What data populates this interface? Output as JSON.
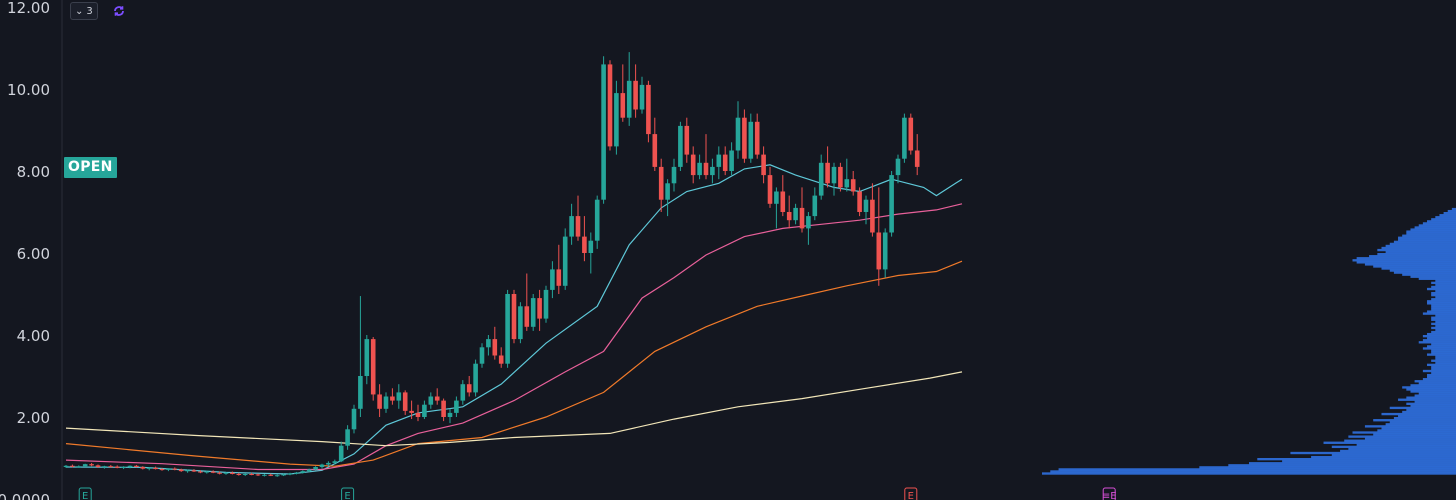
{
  "toolbar": {
    "collapse_count": "3",
    "collapse_icon": "chevron-down-icon",
    "sync_icon": "sync-icon"
  },
  "badge": {
    "label": "OPEN",
    "color": "#26a69a"
  },
  "colors": {
    "background": "#141720",
    "up": "#26a69a",
    "down": "#ef5350",
    "ma_fast": "#5ec8d8",
    "ma_mid": "#e8609a",
    "ma_slow": "#f07a2a",
    "ma_long": "#f2e6b8",
    "volume_profile": "#2f6fdc",
    "earnings_green": "#26a69a",
    "earnings_red": "#ef5350",
    "earnings_magenta": "#d64fd6"
  },
  "chart_data": {
    "type": "candlestick",
    "y_axis": {
      "ticks": [
        "0.0000",
        "2.00",
        "4.00",
        "6.00",
        "8.00",
        "10.00",
        "12.00"
      ],
      "min": 0,
      "max": 12,
      "position": "left"
    },
    "grid": false,
    "candles": [
      [
        0.78,
        0.83,
        0.76,
        0.81
      ],
      [
        0.81,
        0.84,
        0.77,
        0.79
      ],
      [
        0.79,
        0.82,
        0.76,
        0.8
      ],
      [
        0.8,
        0.86,
        0.78,
        0.85
      ],
      [
        0.85,
        0.88,
        0.8,
        0.82
      ],
      [
        0.82,
        0.84,
        0.76,
        0.78
      ],
      [
        0.78,
        0.81,
        0.74,
        0.8
      ],
      [
        0.8,
        0.83,
        0.77,
        0.79
      ],
      [
        0.79,
        0.82,
        0.75,
        0.76
      ],
      [
        0.76,
        0.8,
        0.73,
        0.78
      ],
      [
        0.78,
        0.82,
        0.75,
        0.81
      ],
      [
        0.81,
        0.83,
        0.77,
        0.78
      ],
      [
        0.78,
        0.8,
        0.72,
        0.74
      ],
      [
        0.74,
        0.78,
        0.7,
        0.76
      ],
      [
        0.76,
        0.79,
        0.72,
        0.73
      ],
      [
        0.73,
        0.76,
        0.69,
        0.71
      ],
      [
        0.71,
        0.75,
        0.68,
        0.74
      ],
      [
        0.74,
        0.77,
        0.7,
        0.72
      ],
      [
        0.72,
        0.74,
        0.66,
        0.68
      ],
      [
        0.68,
        0.72,
        0.64,
        0.7
      ],
      [
        0.7,
        0.73,
        0.66,
        0.67
      ],
      [
        0.67,
        0.7,
        0.63,
        0.65
      ],
      [
        0.65,
        0.69,
        0.62,
        0.67
      ],
      [
        0.67,
        0.7,
        0.63,
        0.64
      ],
      [
        0.64,
        0.67,
        0.6,
        0.62
      ],
      [
        0.62,
        0.66,
        0.59,
        0.64
      ],
      [
        0.64,
        0.67,
        0.6,
        0.61
      ],
      [
        0.61,
        0.64,
        0.57,
        0.59
      ],
      [
        0.59,
        0.63,
        0.56,
        0.61
      ],
      [
        0.61,
        0.64,
        0.58,
        0.6
      ],
      [
        0.6,
        0.62,
        0.56,
        0.58
      ],
      [
        0.58,
        0.61,
        0.55,
        0.59
      ],
      [
        0.59,
        0.62,
        0.56,
        0.57
      ],
      [
        0.57,
        0.6,
        0.54,
        0.58
      ],
      [
        0.58,
        0.62,
        0.56,
        0.6
      ],
      [
        0.6,
        0.64,
        0.58,
        0.62
      ],
      [
        0.62,
        0.66,
        0.6,
        0.64
      ],
      [
        0.64,
        0.7,
        0.62,
        0.68
      ],
      [
        0.68,
        0.74,
        0.65,
        0.72
      ],
      [
        0.72,
        0.8,
        0.7,
        0.78
      ],
      [
        0.78,
        0.86,
        0.74,
        0.84
      ],
      [
        0.84,
        0.92,
        0.8,
        0.88
      ],
      [
        0.88,
        0.96,
        0.84,
        0.92
      ],
      [
        0.92,
        1.4,
        0.9,
        1.3
      ],
      [
        1.3,
        1.8,
        1.2,
        1.7
      ],
      [
        1.7,
        2.3,
        1.6,
        2.2
      ],
      [
        2.2,
        4.95,
        2.0,
        3.0
      ],
      [
        3.0,
        4.0,
        2.8,
        3.9
      ],
      [
        3.9,
        3.95,
        2.4,
        2.55
      ],
      [
        2.55,
        2.8,
        2.0,
        2.2
      ],
      [
        2.2,
        2.6,
        2.1,
        2.5
      ],
      [
        2.5,
        2.7,
        2.3,
        2.4
      ],
      [
        2.4,
        2.8,
        2.2,
        2.6
      ],
      [
        2.6,
        2.65,
        2.05,
        2.15
      ],
      [
        2.15,
        2.4,
        1.95,
        2.1
      ],
      [
        2.1,
        2.3,
        1.9,
        2.0
      ],
      [
        2.0,
        2.4,
        1.95,
        2.3
      ],
      [
        2.3,
        2.6,
        2.2,
        2.5
      ],
      [
        2.5,
        2.7,
        2.3,
        2.4
      ],
      [
        2.4,
        2.45,
        1.9,
        2.0
      ],
      [
        2.0,
        2.2,
        1.85,
        2.1
      ],
      [
        2.1,
        2.5,
        2.0,
        2.4
      ],
      [
        2.4,
        2.9,
        2.3,
        2.8
      ],
      [
        2.8,
        3.0,
        2.5,
        2.6
      ],
      [
        2.6,
        3.4,
        2.5,
        3.3
      ],
      [
        3.3,
        3.8,
        3.2,
        3.7
      ],
      [
        3.7,
        4.0,
        3.5,
        3.9
      ],
      [
        3.9,
        4.2,
        3.4,
        3.5
      ],
      [
        3.5,
        3.7,
        3.2,
        3.3
      ],
      [
        3.3,
        5.1,
        3.2,
        5.0
      ],
      [
        5.0,
        5.1,
        3.8,
        3.9
      ],
      [
        3.9,
        4.8,
        3.8,
        4.7
      ],
      [
        4.7,
        5.5,
        4.1,
        4.2
      ],
      [
        4.2,
        5.0,
        4.1,
        4.9
      ],
      [
        4.9,
        5.1,
        4.1,
        4.4
      ],
      [
        4.4,
        5.2,
        4.3,
        5.1
      ],
      [
        5.1,
        5.8,
        4.9,
        5.6
      ],
      [
        5.6,
        6.2,
        5.0,
        5.2
      ],
      [
        5.2,
        6.6,
        5.1,
        6.4
      ],
      [
        6.4,
        7.2,
        6.2,
        6.9
      ],
      [
        6.9,
        7.4,
        6.3,
        6.4
      ],
      [
        6.4,
        6.9,
        5.8,
        6.0
      ],
      [
        6.0,
        6.5,
        5.5,
        6.3
      ],
      [
        6.3,
        7.4,
        6.1,
        7.3
      ],
      [
        7.3,
        10.8,
        7.2,
        10.6
      ],
      [
        10.6,
        10.7,
        8.5,
        8.6
      ],
      [
        8.6,
        10.2,
        8.4,
        9.9
      ],
      [
        9.9,
        10.6,
        9.2,
        9.3
      ],
      [
        9.3,
        10.9,
        9.1,
        10.2
      ],
      [
        10.2,
        10.6,
        9.3,
        9.5
      ],
      [
        9.5,
        10.3,
        9.4,
        10.1
      ],
      [
        10.1,
        10.2,
        8.7,
        8.9
      ],
      [
        8.9,
        9.3,
        8.0,
        8.1
      ],
      [
        8.1,
        8.3,
        7.0,
        7.3
      ],
      [
        7.3,
        7.8,
        6.9,
        7.7
      ],
      [
        7.7,
        8.3,
        7.5,
        8.1
      ],
      [
        8.1,
        9.2,
        8.0,
        9.1
      ],
      [
        9.1,
        9.3,
        8.2,
        8.4
      ],
      [
        8.4,
        8.6,
        7.7,
        7.9
      ],
      [
        7.9,
        8.4,
        7.8,
        8.2
      ],
      [
        8.2,
        8.9,
        7.8,
        7.9
      ],
      [
        7.9,
        8.3,
        7.7,
        8.1
      ],
      [
        8.1,
        8.6,
        7.8,
        8.4
      ],
      [
        8.4,
        8.6,
        7.9,
        8.0
      ],
      [
        8.0,
        8.7,
        7.9,
        8.5
      ],
      [
        8.5,
        9.7,
        8.3,
        9.3
      ],
      [
        9.3,
        9.5,
        8.2,
        8.3
      ],
      [
        8.3,
        9.4,
        8.2,
        9.2
      ],
      [
        9.2,
        9.4,
        8.3,
        8.4
      ],
      [
        8.4,
        8.6,
        7.7,
        7.9
      ],
      [
        7.9,
        8.1,
        7.1,
        7.2
      ],
      [
        7.2,
        7.6,
        6.6,
        7.5
      ],
      [
        7.5,
        7.9,
        6.9,
        7.0
      ],
      [
        7.0,
        7.4,
        6.6,
        6.8
      ],
      [
        6.8,
        7.2,
        6.7,
        7.1
      ],
      [
        7.1,
        7.6,
        6.5,
        6.6
      ],
      [
        6.6,
        7.0,
        6.2,
        6.9
      ],
      [
        6.9,
        7.6,
        6.8,
        7.4
      ],
      [
        7.4,
        8.4,
        7.3,
        8.2
      ],
      [
        8.2,
        8.6,
        7.6,
        7.7
      ],
      [
        7.7,
        8.2,
        7.4,
        8.1
      ],
      [
        8.1,
        8.2,
        7.5,
        7.6
      ],
      [
        7.6,
        8.3,
        7.5,
        7.8
      ],
      [
        7.8,
        8.0,
        7.4,
        7.5
      ],
      [
        7.5,
        7.6,
        6.9,
        7.0
      ],
      [
        7.0,
        7.4,
        6.7,
        7.3
      ],
      [
        7.3,
        7.7,
        6.4,
        6.5
      ],
      [
        6.5,
        7.6,
        5.2,
        5.6
      ],
      [
        5.6,
        6.6,
        5.4,
        6.5
      ],
      [
        6.5,
        8.0,
        6.4,
        7.9
      ],
      [
        7.9,
        8.4,
        7.7,
        8.3
      ],
      [
        8.3,
        9.4,
        8.2,
        9.3
      ],
      [
        9.3,
        9.4,
        8.4,
        8.5
      ],
      [
        8.5,
        8.9,
        7.9,
        8.1
      ]
    ],
    "moving_averages": [
      {
        "color_key": "ma_fast",
        "values": [
          [
            0,
            0.78
          ],
          [
            12,
            0.77
          ],
          [
            25,
            0.65
          ],
          [
            35,
            0.61
          ],
          [
            40,
            0.7
          ],
          [
            45,
            1.1
          ],
          [
            50,
            1.8
          ],
          [
            55,
            2.1
          ],
          [
            62,
            2.25
          ],
          [
            68,
            2.8
          ],
          [
            75,
            3.8
          ],
          [
            83,
            4.7
          ],
          [
            88,
            6.2
          ],
          [
            93,
            7.1
          ],
          [
            97,
            7.5
          ],
          [
            102,
            7.7
          ],
          [
            106,
            8.05
          ],
          [
            110,
            8.15
          ],
          [
            114,
            7.9
          ],
          [
            120,
            7.6
          ],
          [
            124,
            7.5
          ],
          [
            129,
            7.8
          ],
          [
            134,
            7.6
          ],
          [
            136,
            7.4
          ],
          [
            139,
            7.7
          ],
          [
            140,
            7.8
          ]
        ]
      },
      {
        "color_key": "ma_mid",
        "values": [
          [
            0,
            0.95
          ],
          [
            15,
            0.86
          ],
          [
            30,
            0.72
          ],
          [
            40,
            0.72
          ],
          [
            45,
            0.85
          ],
          [
            50,
            1.3
          ],
          [
            55,
            1.6
          ],
          [
            62,
            1.85
          ],
          [
            70,
            2.4
          ],
          [
            78,
            3.1
          ],
          [
            84,
            3.6
          ],
          [
            90,
            4.9
          ],
          [
            95,
            5.4
          ],
          [
            100,
            5.95
          ],
          [
            106,
            6.4
          ],
          [
            112,
            6.6
          ],
          [
            118,
            6.7
          ],
          [
            124,
            6.8
          ],
          [
            130,
            6.95
          ],
          [
            136,
            7.05
          ],
          [
            140,
            7.2
          ]
        ]
      },
      {
        "color_key": "ma_slow",
        "values": [
          [
            0,
            1.35
          ],
          [
            20,
            1.05
          ],
          [
            35,
            0.85
          ],
          [
            42,
            0.8
          ],
          [
            48,
            0.95
          ],
          [
            55,
            1.35
          ],
          [
            65,
            1.5
          ],
          [
            75,
            2.0
          ],
          [
            84,
            2.6
          ],
          [
            92,
            3.6
          ],
          [
            100,
            4.2
          ],
          [
            108,
            4.7
          ],
          [
            115,
            4.95
          ],
          [
            122,
            5.2
          ],
          [
            130,
            5.45
          ],
          [
            136,
            5.55
          ],
          [
            140,
            5.8
          ]
        ]
      },
      {
        "color_key": "ma_long",
        "values": [
          [
            0,
            1.73
          ],
          [
            20,
            1.55
          ],
          [
            40,
            1.4
          ],
          [
            50,
            1.3
          ],
          [
            60,
            1.38
          ],
          [
            70,
            1.5
          ],
          [
            85,
            1.6
          ],
          [
            95,
            1.95
          ],
          [
            105,
            2.25
          ],
          [
            115,
            2.45
          ],
          [
            125,
            2.7
          ],
          [
            135,
            2.95
          ],
          [
            140,
            3.1
          ]
        ]
      }
    ],
    "volume_profile": {
      "price_start": 0.6,
      "price_step": 0.05,
      "volumes": [
        1.0,
        0.98,
        0.96,
        0.62,
        0.55,
        0.5,
        0.42,
        0.48,
        0.35,
        0.3,
        0.4,
        0.28,
        0.26,
        0.3,
        0.24,
        0.32,
        0.27,
        0.22,
        0.26,
        0.2,
        0.25,
        0.19,
        0.18,
        0.22,
        0.17,
        0.16,
        0.2,
        0.15,
        0.14,
        0.18,
        0.13,
        0.12,
        0.16,
        0.11,
        0.12,
        0.1,
        0.14,
        0.12,
        0.1,
        0.09,
        0.11,
        0.12,
        0.13,
        0.11,
        0.09,
        0.1,
        0.08,
        0.07,
        0.07,
        0.06,
        0.08,
        0.06,
        0.06,
        0.07,
        0.05,
        0.06,
        0.05,
        0.05,
        0.07,
        0.06,
        0.06,
        0.08,
        0.07,
        0.06,
        0.09,
        0.08,
        0.07,
        0.08,
        0.07,
        0.06,
        0.05,
        0.06,
        0.05,
        0.06,
        0.05,
        0.06,
        0.06,
        0.05,
        0.08,
        0.07,
        0.06,
        0.06,
        0.06,
        0.07,
        0.07,
        0.06,
        0.05,
        0.06,
        0.06,
        0.05,
        0.07,
        0.06,
        0.05,
        0.06,
        0.05,
        0.09,
        0.11,
        0.13,
        0.15,
        0.16,
        0.18,
        0.2,
        0.22,
        0.24,
        0.25,
        0.24,
        0.21,
        0.19,
        0.17,
        0.19,
        0.18,
        0.17,
        0.16,
        0.15,
        0.14,
        0.14,
        0.13,
        0.12,
        0.12,
        0.11,
        0.1,
        0.09,
        0.08,
        0.07,
        0.06,
        0.05,
        0.04,
        0.03,
        0.02,
        0.01
      ]
    },
    "event_markers": [
      {
        "label": "E",
        "bar": 3,
        "color_key": "earnings_green"
      },
      {
        "label": "E",
        "bar": 44,
        "color_key": "earnings_green"
      },
      {
        "label": "E",
        "bar": 132,
        "color_key": "earnings_red"
      },
      {
        "label": "≡E",
        "bar": 163,
        "color_key": "earnings_magenta"
      }
    ]
  }
}
